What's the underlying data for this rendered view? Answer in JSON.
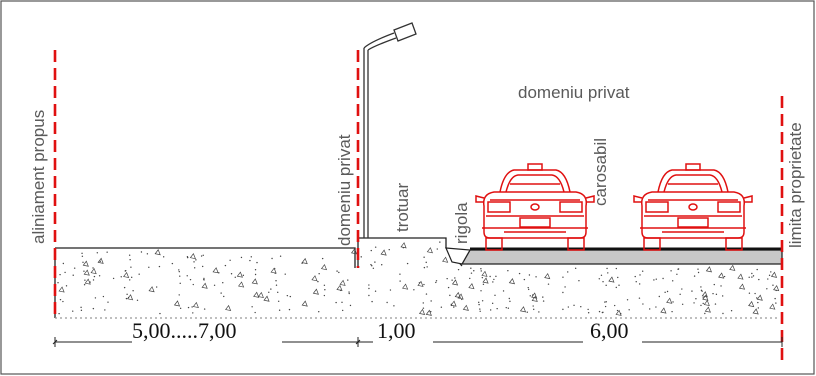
{
  "labels": {
    "aliniament_propus": "aliniament propus",
    "domeniu_privat_left": "domeniu privat",
    "trotuar": "trotuar",
    "rigola": "rigola",
    "carosabil": "carosabil",
    "domeniu_privat_top": "domeniu privat",
    "limita_proprietate": "limita proprietate"
  },
  "dimensions": {
    "left": "5,00.....7,00",
    "middle": "1,00",
    "right": "6,00"
  },
  "colors": {
    "boundary_line": "#e01010",
    "car_outline": "#e01010",
    "label_text": "#5a5a5a",
    "dimension_text": "#111111",
    "road_surface": "#c8c8c8"
  },
  "icons": {
    "street_lamp": "street-lamp-icon",
    "car": "car-rear-view-icon"
  }
}
